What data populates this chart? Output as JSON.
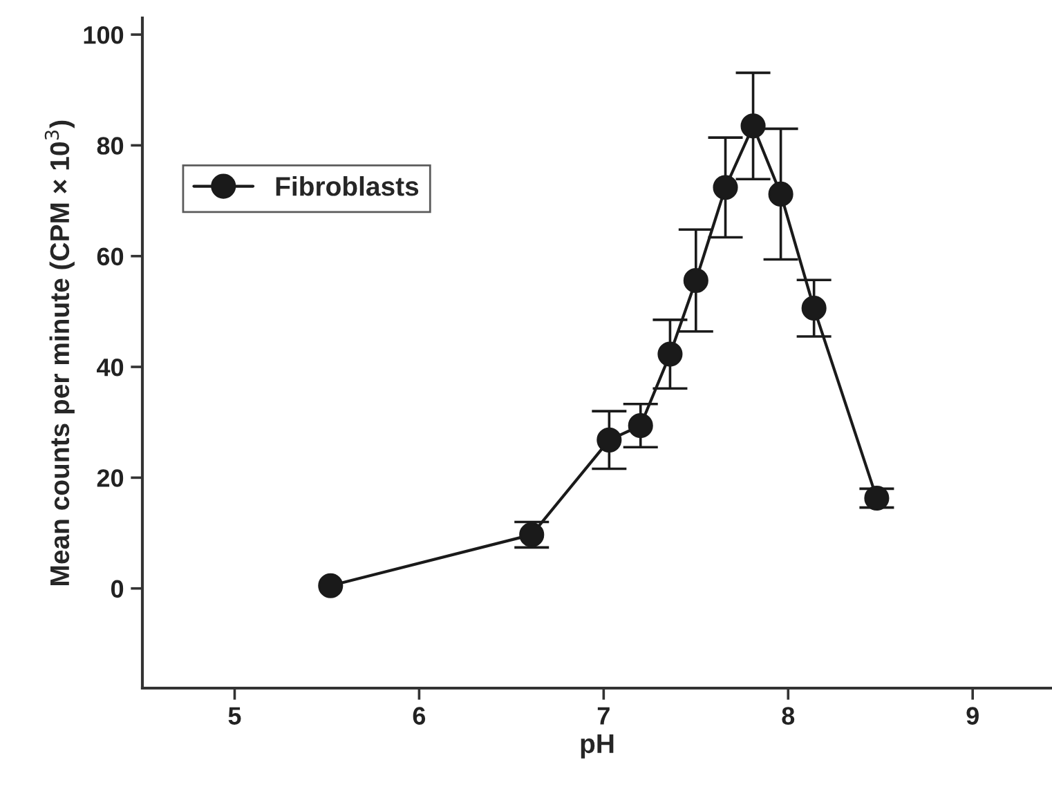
{
  "chart_data": {
    "type": "line",
    "xlabel": "pH",
    "ylabel": "Mean counts per minute (CPM × 10$^{3}$)",
    "xlim": [
      4.5,
      9.43
    ],
    "xticks": [
      5,
      6,
      7,
      8,
      9
    ],
    "ylim": [
      -18,
      103
    ],
    "yticks": [
      0,
      20,
      40,
      60,
      80,
      100
    ],
    "x": [
      5.52,
      6.61,
      7.03,
      7.2,
      7.36,
      7.5,
      7.66,
      7.81,
      7.96,
      8.14,
      8.48
    ],
    "series": [
      {
        "name": "Fibroblasts",
        "color": "#1a1a1a",
        "values": [
          0.5,
          9.7,
          26.8,
          29.4,
          42.3,
          55.6,
          72.4,
          83.5,
          71.2,
          50.6,
          16.3
        ],
        "errors": [
          null,
          2.3,
          5.2,
          3.9,
          6.2,
          9.2,
          9.0,
          9.6,
          11.8,
          5.1,
          1.7
        ]
      }
    ],
    "marker": "circle",
    "line_style": "solid",
    "legend": "top left",
    "grid": false
  }
}
